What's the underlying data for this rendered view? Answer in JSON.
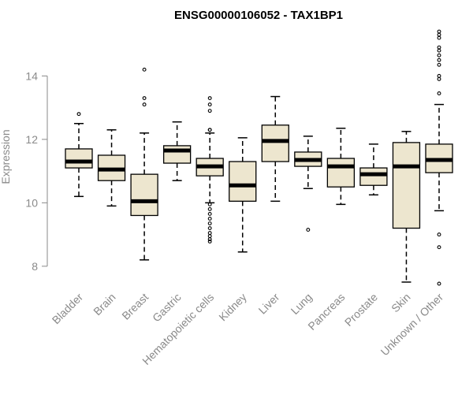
{
  "chart_data": {
    "type": "boxplot",
    "title": "ENSG00000106052 - TAX1BP1",
    "xlabel": "",
    "ylabel": "Expression",
    "ylim": [
      7.4,
      15.5
    ],
    "yticks": [
      8,
      10,
      12,
      14
    ],
    "categories": [
      "Bladder",
      "Brain",
      "Breast",
      "Gastric",
      "Hematopoietic cells",
      "Kidney",
      "Liver",
      "Lung",
      "Pancreas",
      "Prostate",
      "Skin",
      "Unknown / Other"
    ],
    "boxes": [
      {
        "name": "Bladder",
        "whisker_low": 10.2,
        "q1": 11.1,
        "median": 11.3,
        "q3": 11.7,
        "whisker_high": 12.5,
        "outliers": [
          12.8
        ]
      },
      {
        "name": "Brain",
        "whisker_low": 9.9,
        "q1": 10.7,
        "median": 11.05,
        "q3": 11.5,
        "whisker_high": 12.3,
        "outliers": []
      },
      {
        "name": "Breast",
        "whisker_low": 8.2,
        "q1": 9.6,
        "median": 10.05,
        "q3": 10.9,
        "whisker_high": 12.2,
        "outliers": [
          13.1,
          13.3,
          14.2
        ]
      },
      {
        "name": "Gastric",
        "whisker_low": 10.7,
        "q1": 11.25,
        "median": 11.65,
        "q3": 11.8,
        "whisker_high": 12.55,
        "outliers": []
      },
      {
        "name": "Hematopoietic cells",
        "whisker_low": 10.0,
        "q1": 10.85,
        "median": 11.15,
        "q3": 11.4,
        "whisker_high": 12.2,
        "outliers": [
          12.3,
          12.3,
          12.9,
          13.1,
          13.3,
          9.95,
          9.8,
          9.65,
          9.5,
          9.35,
          9.2,
          9.05,
          8.95,
          8.85,
          8.78
        ]
      },
      {
        "name": "Kidney",
        "whisker_low": 8.45,
        "q1": 10.05,
        "median": 10.55,
        "q3": 11.3,
        "whisker_high": 12.05,
        "outliers": []
      },
      {
        "name": "Liver",
        "whisker_low": 10.05,
        "q1": 11.3,
        "median": 11.95,
        "q3": 12.45,
        "whisker_high": 13.35,
        "outliers": []
      },
      {
        "name": "Lung",
        "whisker_low": 10.45,
        "q1": 11.15,
        "median": 11.35,
        "q3": 11.6,
        "whisker_high": 12.1,
        "outliers": [
          9.15
        ]
      },
      {
        "name": "Pancreas",
        "whisker_low": 9.95,
        "q1": 10.5,
        "median": 11.15,
        "q3": 11.4,
        "whisker_high": 12.35,
        "outliers": []
      },
      {
        "name": "Prostate",
        "whisker_low": 10.25,
        "q1": 10.55,
        "median": 10.9,
        "q3": 11.1,
        "whisker_high": 11.85,
        "outliers": []
      },
      {
        "name": "Skin",
        "whisker_low": 7.5,
        "q1": 9.2,
        "median": 11.15,
        "q3": 11.9,
        "whisker_high": 12.25,
        "outliers": []
      },
      {
        "name": "Unknown / Other",
        "whisker_low": 9.75,
        "q1": 10.95,
        "median": 11.35,
        "q3": 11.85,
        "whisker_high": 13.1,
        "outliers": [
          13.45,
          13.9,
          14.0,
          14.35,
          14.5,
          14.65,
          14.8,
          14.9,
          15.2,
          15.3,
          15.4,
          9.0,
          8.6,
          7.45
        ]
      }
    ],
    "colors": {
      "box_fill": "#ede6cf",
      "box_stroke": "#000000",
      "median": "#000000",
      "axis": "#8a8a8a",
      "text": "#8a8a8a",
      "title": "#000000"
    }
  }
}
